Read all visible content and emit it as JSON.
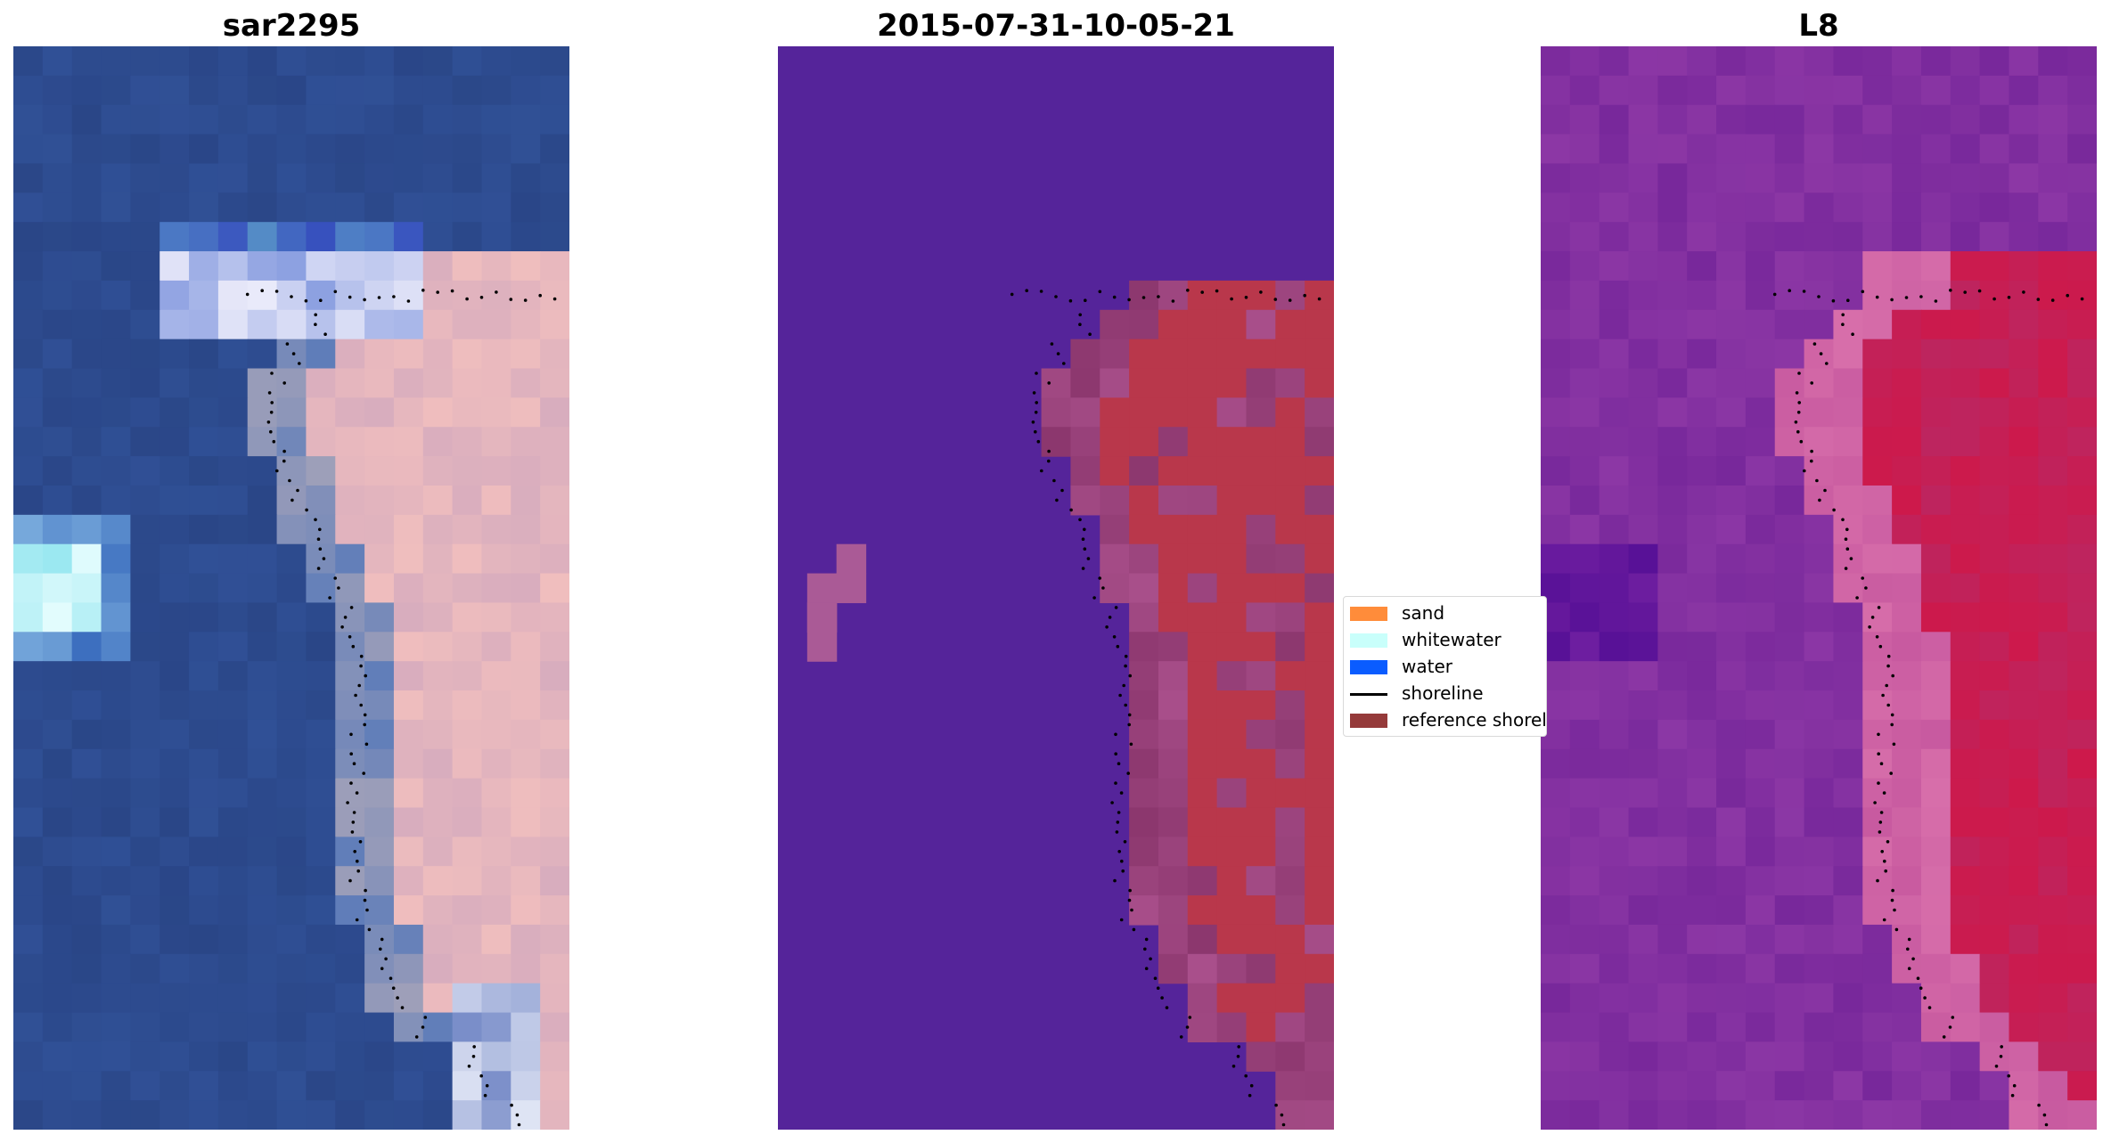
{
  "panels": [
    {
      "title": "sar2295"
    },
    {
      "title": "2015-07-31-10-05-21"
    },
    {
      "title": "L8"
    }
  ],
  "legend": {
    "items": [
      {
        "label": "sand",
        "color": "#ff8c3a",
        "kind": "patch"
      },
      {
        "label": "whitewater",
        "color": "#c9fffb",
        "kind": "patch"
      },
      {
        "label": "water",
        "color": "#0a5cff",
        "kind": "patch"
      },
      {
        "label": "shoreline",
        "color": "#000000",
        "kind": "line"
      },
      {
        "label": "reference shoreline",
        "color": "#953a3a",
        "kind": "patch"
      }
    ]
  },
  "colors": {
    "water_class_overlay": "#55249a",
    "sar_deep_water": "#2b4a8a",
    "l8_background": "#7a2a9e",
    "l8_land": "#cc1a4a",
    "reference_shoreline": "#953a3a"
  }
}
